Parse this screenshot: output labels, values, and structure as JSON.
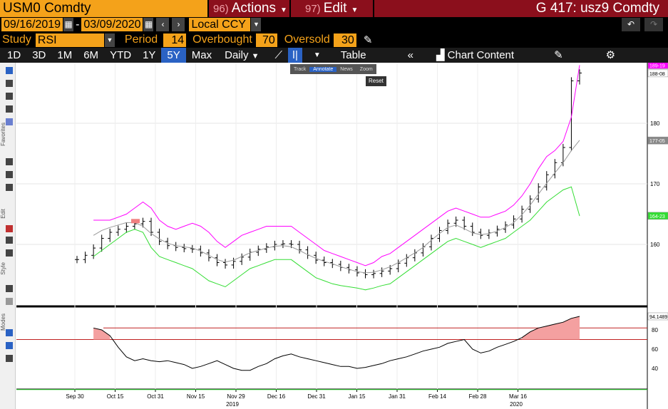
{
  "header": {
    "ticker": "USM0 Comdty",
    "actions": {
      "num": "96)",
      "label": "Actions"
    },
    "edit": {
      "num": "97)",
      "label": "Edit"
    },
    "title": "G 417: usz9 Comdty"
  },
  "dates": {
    "start": "09/16/2019",
    "sep": "-",
    "end": "03/09/2020",
    "currency": "Local CCY"
  },
  "study": {
    "study_label": "Study",
    "study_value": "RSI",
    "period_label": "Period",
    "period_value": "14",
    "overbought_label": "Overbought",
    "overbought_value": "70",
    "oversold_label": "Oversold",
    "oversold_value": "30"
  },
  "toolbar": {
    "ranges": [
      "1D",
      "3D",
      "1M",
      "6M",
      "YTD",
      "1Y",
      "5Y",
      "Max"
    ],
    "selected_range": "5Y",
    "frequency": "Daily",
    "table": "Table",
    "chart_content": "Chart Content"
  },
  "annotation_bar": {
    "items": [
      "Track",
      "Annotate",
      "News",
      "Zoom"
    ],
    "reset": "Reset"
  },
  "left_tools": {
    "favorites": "Favorites",
    "edit": "Edit",
    "style": "Style",
    "modes": "Modes"
  },
  "colors": {
    "accent": "#f4a21a",
    "red": "#8b0f1c",
    "upper_band": "#ff00ff",
    "lower_band": "#33dd33",
    "selected": "#2a62c4"
  },
  "chart_data": [
    {
      "type": "line",
      "title": "",
      "x_ticks": [
        "Sep 30",
        "Oct 15",
        "Oct 31",
        "Nov 15",
        "Nov 29",
        "Dec 16",
        "Dec 31",
        "Jan 15",
        "Jan 31",
        "Feb 14",
        "Feb 28",
        "Mar 16"
      ],
      "year_labels": [
        "2019",
        "2020"
      ],
      "y_ticks": [
        "160",
        "170",
        "180"
      ],
      "ylim": [
        150,
        190
      ],
      "right_labels": [
        {
          "text": "189-19",
          "value": 189.6,
          "color": "#ff00ff"
        },
        {
          "text": "188-08",
          "value": 188.25,
          "color": "#000000"
        },
        {
          "text": "177-05",
          "value": 177.16,
          "color": "#888888"
        },
        {
          "text": "164-23",
          "value": 164.72,
          "color": "#33dd33"
        }
      ],
      "series": [
        {
          "color": "#000000",
          "values": [
            157.5,
            158.2,
            159.4,
            161.0,
            162.0,
            162.5,
            163.0,
            163.4,
            163.8,
            162.0,
            160.5,
            159.8,
            159.5,
            159.3,
            159.2,
            158.6,
            157.8,
            157.0,
            156.6,
            157.2,
            157.9,
            158.7,
            159.2,
            159.6,
            160.0,
            160.1,
            160.0,
            159.1,
            158.2,
            157.4,
            157.0,
            156.7,
            156.2,
            155.8,
            155.3,
            155.0,
            155.2,
            155.6,
            156.0,
            156.9,
            157.8,
            158.6,
            159.6,
            161.0,
            162.3,
            163.5,
            164.0,
            163.0,
            162.0,
            161.5,
            161.9,
            162.5,
            163.2,
            164.2,
            165.8,
            167.5,
            169.5,
            171.5,
            173.5,
            176.0,
            187.0,
            188.3
          ]
        },
        {
          "color": "#999999",
          "values": [
            null,
            null,
            161.5,
            162.3,
            162.8,
            163.2,
            163.6,
            163.6,
            163.0,
            161.8,
            160.9,
            160.2,
            159.8,
            159.6,
            159.4,
            158.9,
            158.2,
            157.5,
            157.1,
            157.4,
            158.0,
            158.6,
            159.0,
            159.4,
            159.7,
            159.8,
            159.6,
            159.0,
            158.3,
            157.7,
            157.2,
            156.8,
            156.3,
            155.9,
            155.5,
            155.3,
            155.4,
            155.8,
            156.3,
            157.0,
            157.8,
            158.6,
            159.5,
            160.7,
            161.8,
            162.8,
            163.2,
            162.6,
            161.9,
            161.6,
            161.8,
            162.2,
            162.8,
            163.6,
            164.9,
            166.5,
            168.3,
            170.1,
            171.8,
            173.5,
            175.5,
            177.2
          ]
        },
        {
          "color": "#ff00ff",
          "values": [
            null,
            null,
            164.0,
            164.0,
            164.0,
            164.5,
            165.0,
            166.0,
            167.0,
            166.0,
            164.0,
            163.0,
            162.5,
            163.0,
            163.5,
            163.0,
            162.0,
            160.5,
            159.5,
            160.5,
            161.5,
            162.0,
            162.5,
            163.0,
            163.0,
            163.0,
            163.0,
            162.0,
            161.0,
            160.0,
            159.0,
            158.5,
            158.0,
            157.5,
            157.0,
            156.5,
            157.0,
            158.0,
            158.5,
            159.5,
            160.5,
            161.5,
            162.5,
            163.5,
            164.5,
            165.5,
            166.0,
            165.5,
            165.0,
            164.5,
            164.5,
            165.0,
            165.5,
            166.5,
            168.0,
            170.0,
            172.5,
            174.5,
            175.5,
            177.0,
            181.0,
            189.6
          ]
        },
        {
          "color": "#33dd33",
          "values": [
            null,
            null,
            158.0,
            159.0,
            160.0,
            161.0,
            162.0,
            162.5,
            162.0,
            159.5,
            158.0,
            157.5,
            157.0,
            156.5,
            156.0,
            155.0,
            154.0,
            153.5,
            153.0,
            154.0,
            155.0,
            156.0,
            156.5,
            157.0,
            157.5,
            157.5,
            157.5,
            156.5,
            155.5,
            154.5,
            154.0,
            153.5,
            153.2,
            153.0,
            152.8,
            152.5,
            152.8,
            153.2,
            153.5,
            154.5,
            155.5,
            156.5,
            157.5,
            158.5,
            159.5,
            160.5,
            161.0,
            160.5,
            160.0,
            159.5,
            160.0,
            160.5,
            161.0,
            162.0,
            163.0,
            164.0,
            165.5,
            167.0,
            168.0,
            169.0,
            169.5,
            164.7
          ]
        }
      ]
    },
    {
      "type": "line",
      "title": "",
      "y_ticks": [
        "40",
        "60",
        "80"
      ],
      "ylim": [
        20,
        100
      ],
      "overbought": 70,
      "oversold": 30,
      "right_label": "94.1489",
      "series": [
        {
          "color": "#000000",
          "values": [
            null,
            null,
            82,
            80,
            74,
            62,
            52,
            48,
            50,
            48,
            47,
            48,
            46,
            44,
            40,
            42,
            45,
            48,
            44,
            40,
            38,
            38,
            42,
            45,
            50,
            53,
            55,
            52,
            50,
            48,
            46,
            44,
            42,
            42,
            40,
            41,
            43,
            45,
            48,
            50,
            52,
            55,
            58,
            60,
            62,
            66,
            68,
            70,
            60,
            56,
            58,
            62,
            65,
            68,
            72,
            78,
            82,
            84,
            86,
            88,
            92,
            94.1
          ]
        }
      ]
    }
  ]
}
